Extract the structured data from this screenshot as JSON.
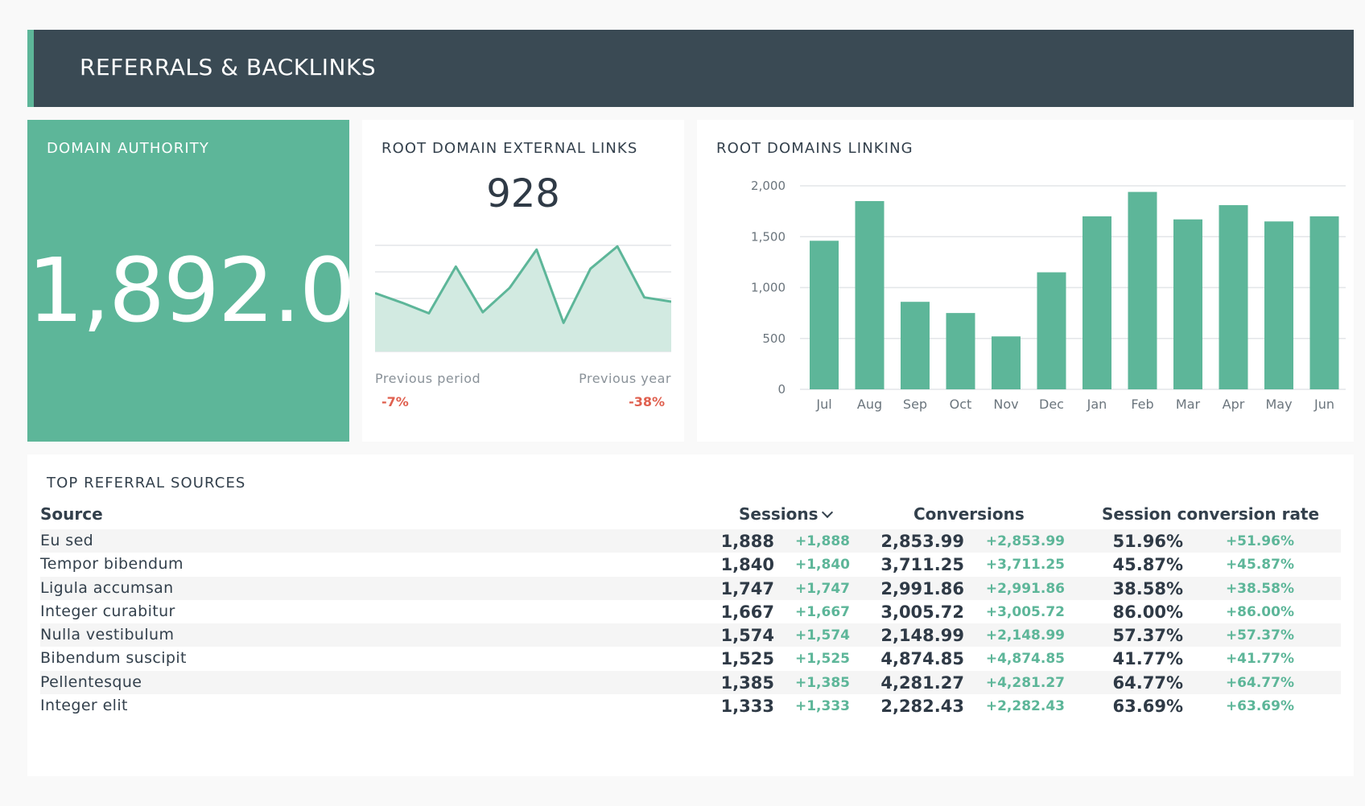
{
  "header": {
    "title": "REFERRALS & BACKLINKS"
  },
  "domain_authority": {
    "title": "DOMAIN AUTHORITY",
    "value": "1,892.0"
  },
  "external_links": {
    "title": "ROOT DOMAIN EXTERNAL LINKS",
    "value": "928",
    "sparkline": [
      0.55,
      0.46,
      0.36,
      0.8,
      0.37,
      0.6,
      0.96,
      0.27,
      0.78,
      0.99,
      0.51,
      0.47
    ],
    "previous_period_label": "Previous period",
    "previous_period_value": "-7%",
    "previous_year_label": "Previous year",
    "previous_year_value": "-38%"
  },
  "root_domains": {
    "title": "ROOT DOMAINS LINKING"
  },
  "chart_data": {
    "type": "bar",
    "categories": [
      "Jul",
      "Aug",
      "Sep",
      "Oct",
      "Nov",
      "Dec",
      "Jan",
      "Feb",
      "Mar",
      "Apr",
      "May",
      "Jun"
    ],
    "values": [
      1460,
      1850,
      860,
      750,
      520,
      1150,
      1700,
      1940,
      1670,
      1810,
      1650,
      1700
    ],
    "yticks": [
      "0",
      "500",
      "1,000",
      "1,500",
      "2,000"
    ],
    "ylim": [
      0,
      2000
    ],
    "color": "#5db699"
  },
  "table": {
    "title": "TOP REFERRAL SOURCES",
    "headers": {
      "source": "Source",
      "sessions": "Sessions",
      "conversions": "Conversions",
      "rate": "Session conversion rate"
    },
    "rows": [
      {
        "source": "Eu sed",
        "sessions": "1,888",
        "sessions_delta": "+1,888",
        "conversions": "2,853.99",
        "conversions_delta": "+2,853.99",
        "rate": "51.96%",
        "rate_delta": "+51.96%"
      },
      {
        "source": "Tempor bibendum",
        "sessions": "1,840",
        "sessions_delta": "+1,840",
        "conversions": "3,711.25",
        "conversions_delta": "+3,711.25",
        "rate": "45.87%",
        "rate_delta": "+45.87%"
      },
      {
        "source": "Ligula accumsan",
        "sessions": "1,747",
        "sessions_delta": "+1,747",
        "conversions": "2,991.86",
        "conversions_delta": "+2,991.86",
        "rate": "38.58%",
        "rate_delta": "+38.58%"
      },
      {
        "source": "Integer curabitur",
        "sessions": "1,667",
        "sessions_delta": "+1,667",
        "conversions": "3,005.72",
        "conversions_delta": "+3,005.72",
        "rate": "86.00%",
        "rate_delta": "+86.00%"
      },
      {
        "source": "Nulla vestibulum",
        "sessions": "1,574",
        "sessions_delta": "+1,574",
        "conversions": "2,148.99",
        "conversions_delta": "+2,148.99",
        "rate": "57.37%",
        "rate_delta": "+57.37%"
      },
      {
        "source": "Bibendum suscipit",
        "sessions": "1,525",
        "sessions_delta": "+1,525",
        "conversions": "4,874.85",
        "conversions_delta": "+4,874.85",
        "rate": "41.77%",
        "rate_delta": "+41.77%"
      },
      {
        "source": "Pellentesque",
        "sessions": "1,385",
        "sessions_delta": "+1,385",
        "conversions": "4,281.27",
        "conversions_delta": "+4,281.27",
        "rate": "64.77%",
        "rate_delta": "+64.77%"
      },
      {
        "source": "Integer elit",
        "sessions": "1,333",
        "sessions_delta": "+1,333",
        "conversions": "2,282.43",
        "conversions_delta": "+2,282.43",
        "rate": "63.69%",
        "rate_delta": "+63.69%"
      }
    ]
  }
}
